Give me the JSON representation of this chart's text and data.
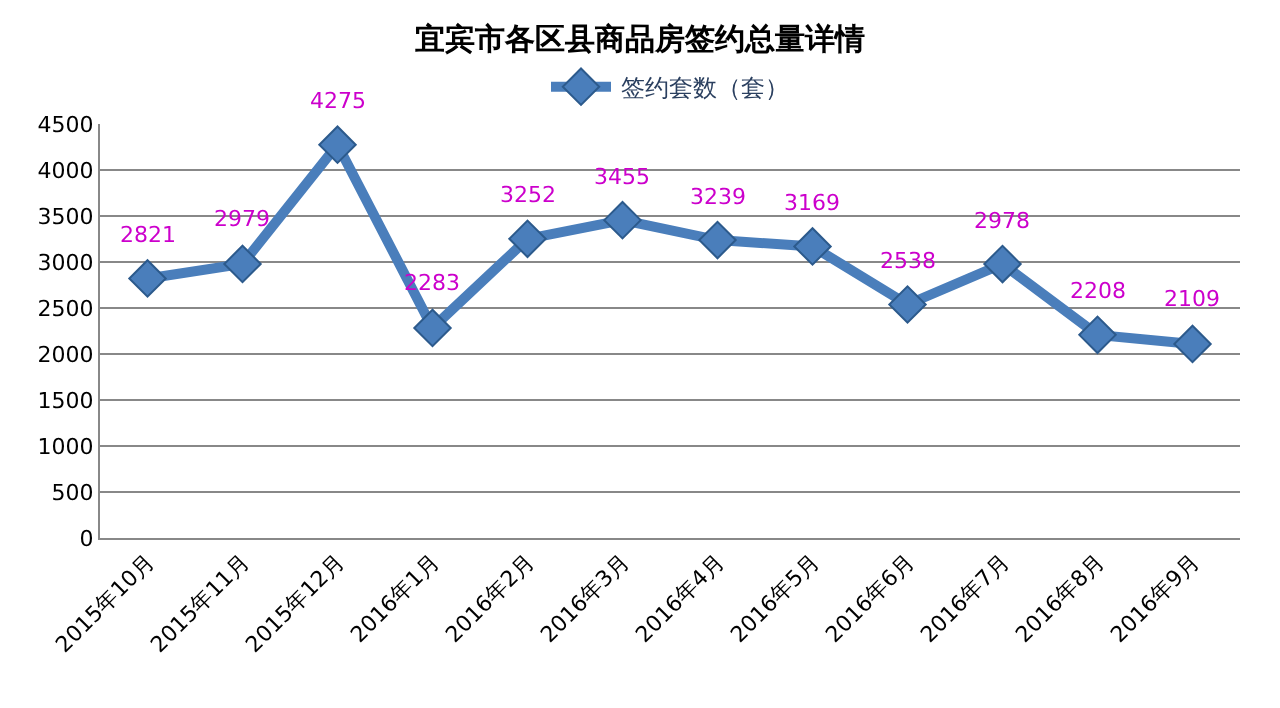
{
  "chart_data": {
    "type": "line",
    "title": "宜宾市各区县商品房签约总量详情",
    "categories": [
      "2015年10月",
      "2015年11月",
      "2015年12月",
      "2016年1月",
      "2016年2月",
      "2016年3月",
      "2016年4月",
      "2016年5月",
      "2016年6月",
      "2016年7月",
      "2016年8月",
      "2016年9月"
    ],
    "series": [
      {
        "name": "签约套数（套）",
        "color": "#4a7ebb",
        "values": [
          2821,
          2979,
          4275,
          2283,
          3252,
          3455,
          3239,
          3169,
          2538,
          2978,
          2208,
          2109
        ]
      }
    ],
    "ylim": [
      0,
      4500
    ],
    "yticks": [
      0,
      500,
      1000,
      1500,
      2000,
      2500,
      3000,
      3500,
      4000,
      4500
    ],
    "grid": "y",
    "legend": "top",
    "marker": "diamond",
    "line_style": "solid",
    "data_labels": true
  }
}
